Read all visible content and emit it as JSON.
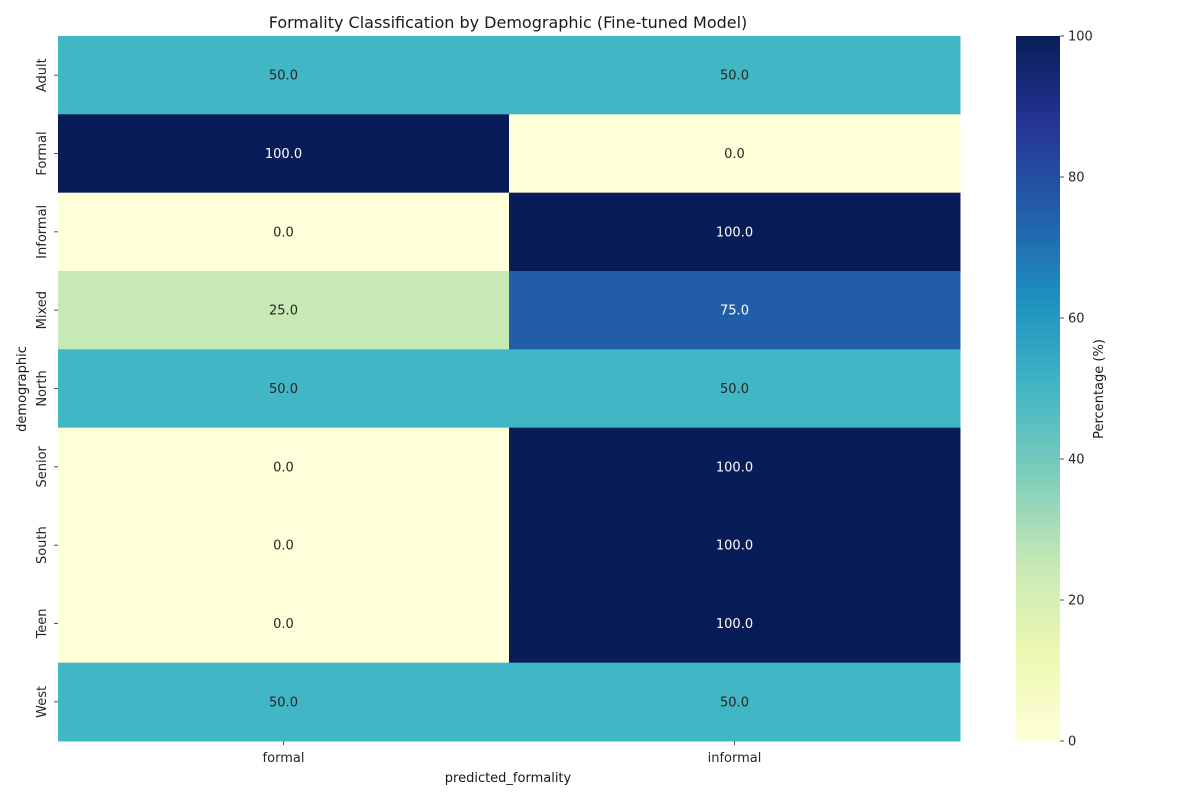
{
  "chart_data": {
    "type": "heatmap",
    "title": "Formality Classification by Demographic (Fine-tuned Model)",
    "xlabel": "predicted_formality",
    "ylabel": "demographic",
    "x_categories": [
      "formal",
      "informal"
    ],
    "y_categories": [
      "Adult",
      "Formal",
      "Informal",
      "Mixed",
      "North",
      "Senior",
      "South",
      "Teen",
      "West"
    ],
    "values": [
      [
        50.0,
        50.0
      ],
      [
        100.0,
        0.0
      ],
      [
        0.0,
        100.0
      ],
      [
        25.0,
        75.0
      ],
      [
        50.0,
        50.0
      ],
      [
        0.0,
        100.0
      ],
      [
        0.0,
        100.0
      ],
      [
        0.0,
        100.0
      ],
      [
        50.0,
        50.0
      ]
    ],
    "cell_labels": [
      [
        "50.0",
        "50.0"
      ],
      [
        "100.0",
        "0.0"
      ],
      [
        "0.0",
        "100.0"
      ],
      [
        "25.0",
        "75.0"
      ],
      [
        "50.0",
        "50.0"
      ],
      [
        "0.0",
        "100.0"
      ],
      [
        "0.0",
        "100.0"
      ],
      [
        "0.0",
        "100.0"
      ],
      [
        "50.0",
        "50.0"
      ]
    ],
    "colormap": "YlGnBu",
    "vmin": 0,
    "vmax": 100,
    "colorbar": {
      "label": "Percentage (%)",
      "ticks": [
        0,
        20,
        40,
        60,
        80,
        100
      ],
      "tick_labels": [
        "0",
        "20",
        "40",
        "60",
        "80",
        "100"
      ]
    },
    "colors": {
      "low": "#ffffd9",
      "high": "#081d58",
      "text_dark": "#262626",
      "text_light": "#ffffff"
    }
  }
}
